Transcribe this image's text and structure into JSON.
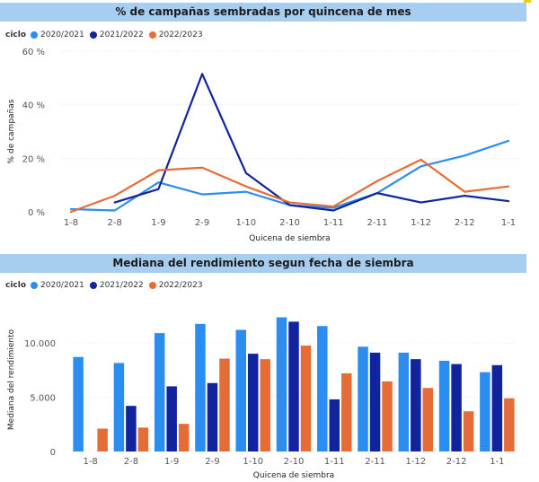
{
  "colors": {
    "2020/2021": "#2c8df0",
    "2021/2022": "#12239e",
    "2022/2023": "#e66c37"
  },
  "chart_data": [
    {
      "type": "line",
      "title": "% de campañas sembradas por quincena de mes",
      "legend_title": "ciclo",
      "legend_position": "top-left",
      "xlabel": "Quicena de siembra",
      "ylabel": "% de campañas",
      "categories": [
        "1-8",
        "2-8",
        "1-9",
        "2-9",
        "1-10",
        "2-10",
        "1-11",
        "2-11",
        "1-12",
        "2-12",
        "1-1"
      ],
      "ylim": [
        0,
        60
      ],
      "yticks": [
        0,
        20,
        40,
        60
      ],
      "ytick_labels": [
        "0 %",
        "20 %",
        "40 %",
        "60 %"
      ],
      "series": [
        {
          "name": "2020/2021",
          "values": [
            1,
            0.5,
            11,
            6.5,
            7.5,
            2.5,
            1.5,
            7,
            17,
            21,
            26.5
          ]
        },
        {
          "name": "2021/2022",
          "values": [
            null,
            3.5,
            8.5,
            51.5,
            14.5,
            2.5,
            0.5,
            7,
            3.5,
            6,
            4
          ]
        },
        {
          "name": "2022/2023",
          "values": [
            0,
            6,
            15.5,
            16.5,
            9.5,
            3.5,
            2,
            11.5,
            19.5,
            7.5,
            9.5
          ]
        }
      ]
    },
    {
      "type": "bar",
      "title": "Mediana del rendimiento segun fecha de siembra",
      "legend_title": "ciclo",
      "legend_position": "top-left",
      "xlabel": "Quicena de siembra",
      "ylabel": "Mediana del rendimiento",
      "categories": [
        "1-8",
        "2-8",
        "1-9",
        "2-9",
        "1-10",
        "2-10",
        "1-11",
        "2-11",
        "1-12",
        "2-12",
        "1-1"
      ],
      "ylim": [
        0,
        13000
      ],
      "yticks": [
        0,
        5000,
        10000
      ],
      "ytick_labels": [
        "0",
        "5.000",
        "10.000"
      ],
      "series": [
        {
          "name": "2020/2021",
          "values": [
            8700,
            8150,
            10900,
            11750,
            11200,
            12350,
            11550,
            9650,
            9100,
            8350,
            7300
          ]
        },
        {
          "name": "2021/2022",
          "values": [
            null,
            4200,
            6000,
            6300,
            9000,
            11950,
            4800,
            9100,
            8500,
            8050,
            7950
          ]
        },
        {
          "name": "2022/2023",
          "values": [
            2100,
            2200,
            2550,
            8550,
            8500,
            9750,
            7200,
            6450,
            5850,
            3700,
            4900
          ]
        }
      ]
    }
  ]
}
